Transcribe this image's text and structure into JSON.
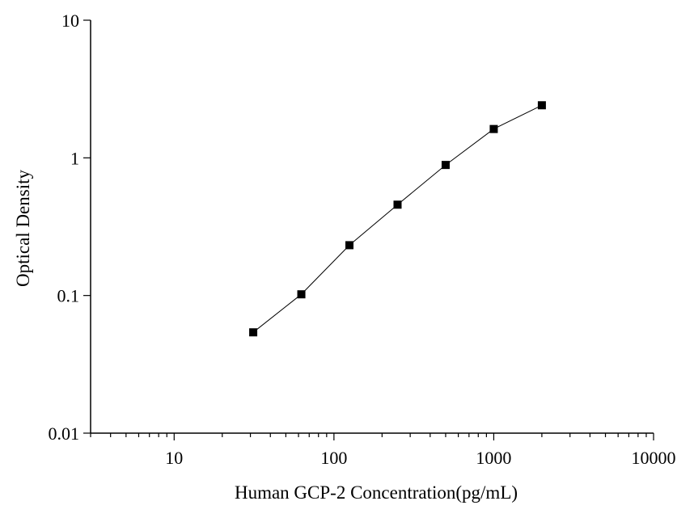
{
  "chart_data": {
    "type": "line",
    "title": "",
    "xlabel": "Human GCP-2 Concentration(pg/mL)",
    "ylabel": "Optical Density",
    "x_scale": "log",
    "y_scale": "log",
    "xlim": [
      3,
      10000
    ],
    "ylim": [
      0.01,
      10
    ],
    "x_ticks": [
      10,
      100,
      1000,
      10000
    ],
    "x_tick_labels": [
      "10",
      "100",
      "1000",
      "10000"
    ],
    "y_ticks": [
      0.01,
      0.1,
      1,
      10
    ],
    "y_tick_labels": [
      "0.01",
      "0.1",
      "1",
      "10"
    ],
    "grid": false,
    "legend": "none",
    "marker": "square",
    "color": "#000000",
    "series": [
      {
        "x": [
          31.25,
          62.5,
          125,
          250,
          500,
          1000,
          2000
        ],
        "y": [
          0.054,
          0.102,
          0.232,
          0.457,
          0.888,
          1.62,
          2.41
        ]
      }
    ]
  }
}
